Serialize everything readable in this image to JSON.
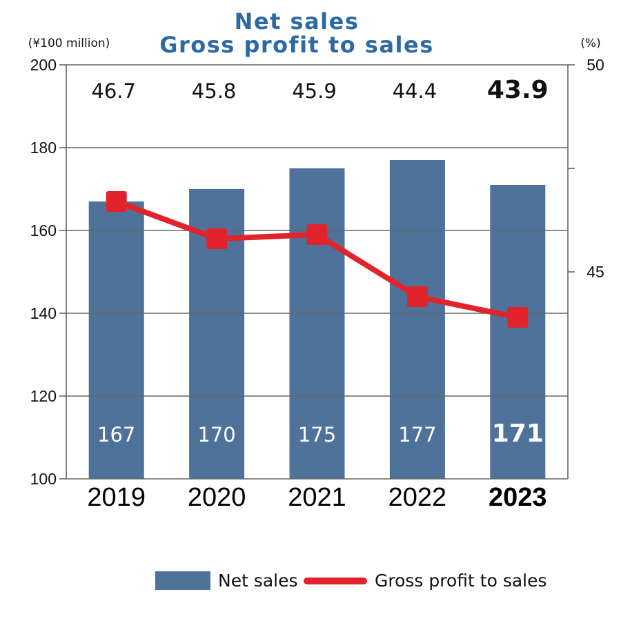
{
  "chart_data": {
    "type": "bar",
    "title_lines": [
      "Net sales",
      "Gross profit to sales"
    ],
    "left_unit": "(¥100 million)",
    "right_unit": "(%)",
    "categories": [
      "2019",
      "2020",
      "2021",
      "2022",
      "2023"
    ],
    "highlight_category": "2023",
    "left_axis": {
      "min": 100,
      "max": 200,
      "ticks": [
        100,
        120,
        140,
        160,
        180,
        200
      ]
    },
    "right_axis": {
      "min": 40,
      "max": 50,
      "labeled_ticks": [
        45,
        50
      ]
    },
    "grid": true,
    "legend_position": "bottom-center",
    "series": [
      {
        "name": "Net sales",
        "kind": "bar",
        "axis": "left",
        "values": [
          167,
          170,
          175,
          177,
          171
        ],
        "labels": [
          "167",
          "170",
          "175",
          "177",
          "171"
        ],
        "color": "#4f729b"
      },
      {
        "name": "Gross profit to sales",
        "kind": "line",
        "axis": "right",
        "values": [
          46.7,
          45.8,
          45.9,
          44.4,
          43.9
        ],
        "labels": [
          "46.7",
          "45.8",
          "45.9",
          "44.4",
          "43.9"
        ],
        "color": "#e1232c"
      }
    ]
  },
  "colors": {
    "title": "#2b6aa3",
    "bar": "#4f729b",
    "line": "#e1232c",
    "grid": "#666666",
    "text": "#111111"
  }
}
